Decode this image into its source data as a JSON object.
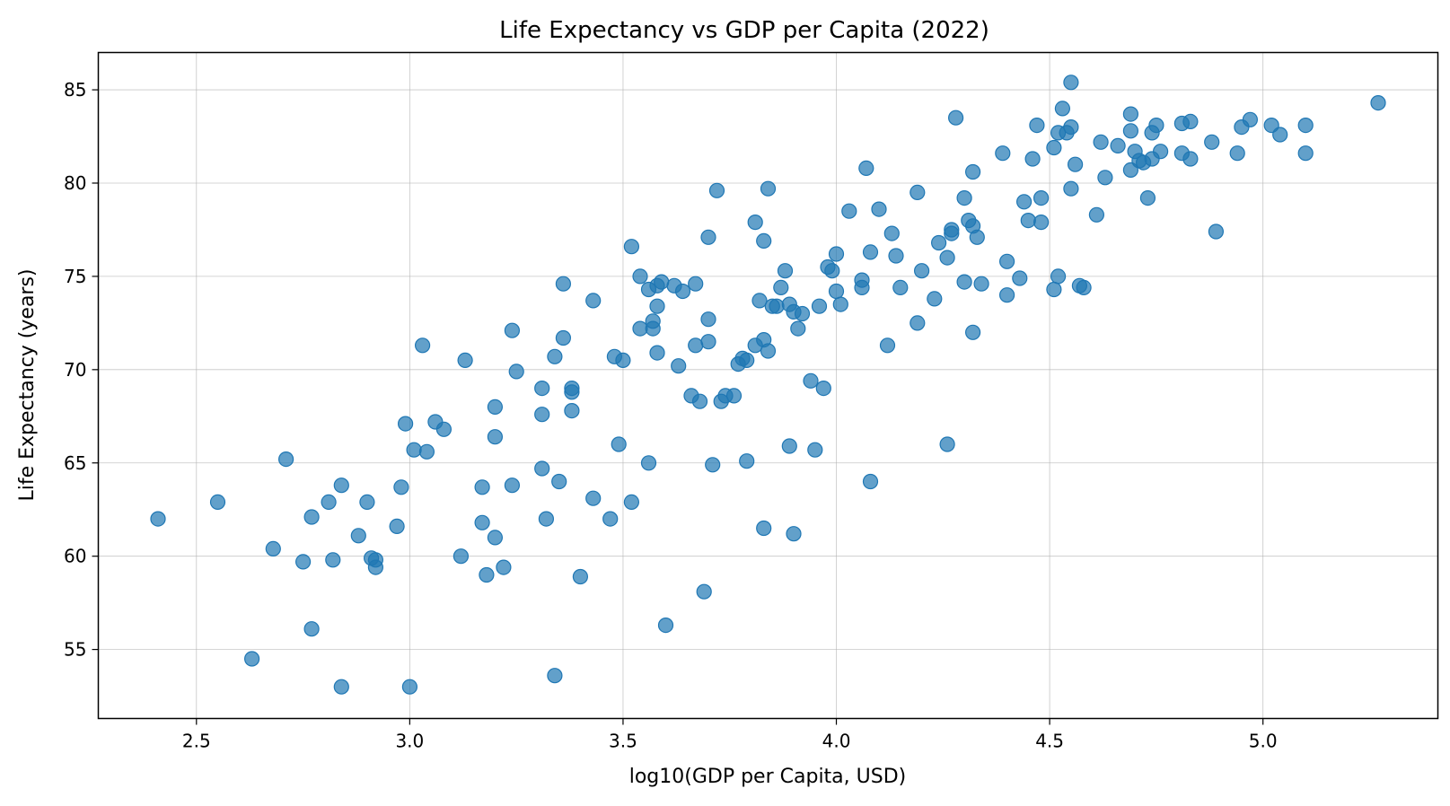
{
  "chart_data": {
    "type": "scatter",
    "title": "Life Expectancy vs GDP per Capita (2022)",
    "xlabel": "log10(GDP per Capita, USD)",
    "ylabel": "Life Expectancy (years)",
    "xlim": [
      2.27,
      5.41
    ],
    "ylim": [
      51.3,
      87.0
    ],
    "xticks": [
      2.5,
      3.0,
      3.5,
      4.0,
      4.5,
      5.0
    ],
    "yticks": [
      55,
      60,
      65,
      70,
      75,
      80,
      85
    ],
    "xtick_labels": [
      "2.5",
      "3.0",
      "3.5",
      "4.0",
      "4.5",
      "5.0"
    ],
    "ytick_labels": [
      "55",
      "60",
      "65",
      "70",
      "75",
      "80",
      "85"
    ],
    "grid": true,
    "marker_color": "#1f77b4",
    "marker_alpha": 0.7,
    "points": [
      [
        2.41,
        62.0
      ],
      [
        2.55,
        62.9
      ],
      [
        2.63,
        54.5
      ],
      [
        2.68,
        60.4
      ],
      [
        2.71,
        65.2
      ],
      [
        2.75,
        59.7
      ],
      [
        2.77,
        62.1
      ],
      [
        2.77,
        56.1
      ],
      [
        2.81,
        62.9
      ],
      [
        2.82,
        59.8
      ],
      [
        2.84,
        63.8
      ],
      [
        2.84,
        53.0
      ],
      [
        2.88,
        61.1
      ],
      [
        2.9,
        62.9
      ],
      [
        2.91,
        59.9
      ],
      [
        2.92,
        59.8
      ],
      [
        2.92,
        59.4
      ],
      [
        2.97,
        61.6
      ],
      [
        2.98,
        63.7
      ],
      [
        2.99,
        67.1
      ],
      [
        3.0,
        53.0
      ],
      [
        3.01,
        65.7
      ],
      [
        3.03,
        71.3
      ],
      [
        3.04,
        65.6
      ],
      [
        3.06,
        67.2
      ],
      [
        3.08,
        66.8
      ],
      [
        3.12,
        60.0
      ],
      [
        3.13,
        70.5
      ],
      [
        3.17,
        61.8
      ],
      [
        3.17,
        63.7
      ],
      [
        3.18,
        59.0
      ],
      [
        3.2,
        61.0
      ],
      [
        3.2,
        66.4
      ],
      [
        3.2,
        68.0
      ],
      [
        3.22,
        59.4
      ],
      [
        3.24,
        63.8
      ],
      [
        3.24,
        72.1
      ],
      [
        3.25,
        69.9
      ],
      [
        3.31,
        64.7
      ],
      [
        3.31,
        67.6
      ],
      [
        3.31,
        69.0
      ],
      [
        3.32,
        62.0
      ],
      [
        3.34,
        70.7
      ],
      [
        3.34,
        53.6
      ],
      [
        3.35,
        64.0
      ],
      [
        3.36,
        74.6
      ],
      [
        3.36,
        71.7
      ],
      [
        3.38,
        67.8
      ],
      [
        3.38,
        68.8
      ],
      [
        3.38,
        69.0
      ],
      [
        3.4,
        58.9
      ],
      [
        3.43,
        63.1
      ],
      [
        3.43,
        73.7
      ],
      [
        3.47,
        62.0
      ],
      [
        3.48,
        70.7
      ],
      [
        3.49,
        66.0
      ],
      [
        3.5,
        70.5
      ],
      [
        3.52,
        62.9
      ],
      [
        3.52,
        76.6
      ],
      [
        3.54,
        75.0
      ],
      [
        3.54,
        72.2
      ],
      [
        3.56,
        65.0
      ],
      [
        3.56,
        74.3
      ],
      [
        3.57,
        72.2
      ],
      [
        3.57,
        72.6
      ],
      [
        3.58,
        70.9
      ],
      [
        3.58,
        73.4
      ],
      [
        3.58,
        74.5
      ],
      [
        3.59,
        74.7
      ],
      [
        3.6,
        56.3
      ],
      [
        3.62,
        74.5
      ],
      [
        3.63,
        70.2
      ],
      [
        3.64,
        74.2
      ],
      [
        3.66,
        68.6
      ],
      [
        3.67,
        71.3
      ],
      [
        3.67,
        74.6
      ],
      [
        3.68,
        68.3
      ],
      [
        3.69,
        58.1
      ],
      [
        3.7,
        77.1
      ],
      [
        3.7,
        72.7
      ],
      [
        3.7,
        71.5
      ],
      [
        3.71,
        64.9
      ],
      [
        3.72,
        79.6
      ],
      [
        3.73,
        68.3
      ],
      [
        3.74,
        68.6
      ],
      [
        3.76,
        68.6
      ],
      [
        3.77,
        70.3
      ],
      [
        3.78,
        70.6
      ],
      [
        3.79,
        70.5
      ],
      [
        3.79,
        65.1
      ],
      [
        3.81,
        77.9
      ],
      [
        3.81,
        71.3
      ],
      [
        3.82,
        73.7
      ],
      [
        3.83,
        71.6
      ],
      [
        3.83,
        61.5
      ],
      [
        3.83,
        76.9
      ],
      [
        3.84,
        79.7
      ],
      [
        3.84,
        71.0
      ],
      [
        3.85,
        73.4
      ],
      [
        3.86,
        73.4
      ],
      [
        3.87,
        74.4
      ],
      [
        3.88,
        75.3
      ],
      [
        3.89,
        65.9
      ],
      [
        3.89,
        73.5
      ],
      [
        3.9,
        73.1
      ],
      [
        3.9,
        61.2
      ],
      [
        3.91,
        72.2
      ],
      [
        3.92,
        73.0
      ],
      [
        3.94,
        69.4
      ],
      [
        3.95,
        65.7
      ],
      [
        3.96,
        73.4
      ],
      [
        3.97,
        69.0
      ],
      [
        3.98,
        75.5
      ],
      [
        3.99,
        75.3
      ],
      [
        4.0,
        74.2
      ],
      [
        4.0,
        76.2
      ],
      [
        4.01,
        73.5
      ],
      [
        4.03,
        78.5
      ],
      [
        4.06,
        74.4
      ],
      [
        4.06,
        74.8
      ],
      [
        4.07,
        80.8
      ],
      [
        4.08,
        76.3
      ],
      [
        4.08,
        64.0
      ],
      [
        4.1,
        78.6
      ],
      [
        4.12,
        71.3
      ],
      [
        4.13,
        77.3
      ],
      [
        4.14,
        76.1
      ],
      [
        4.15,
        74.4
      ],
      [
        4.19,
        79.5
      ],
      [
        4.19,
        72.5
      ],
      [
        4.2,
        75.3
      ],
      [
        4.23,
        73.8
      ],
      [
        4.24,
        76.8
      ],
      [
        4.26,
        66.0
      ],
      [
        4.26,
        76.0
      ],
      [
        4.27,
        77.5
      ],
      [
        4.27,
        77.3
      ],
      [
        4.28,
        83.5
      ],
      [
        4.3,
        74.7
      ],
      [
        4.3,
        79.2
      ],
      [
        4.31,
        78.0
      ],
      [
        4.32,
        77.7
      ],
      [
        4.32,
        72.0
      ],
      [
        4.32,
        80.6
      ],
      [
        4.33,
        77.1
      ],
      [
        4.34,
        74.6
      ],
      [
        4.39,
        81.6
      ],
      [
        4.4,
        75.8
      ],
      [
        4.4,
        74.0
      ],
      [
        4.43,
        74.9
      ],
      [
        4.44,
        79.0
      ],
      [
        4.45,
        78.0
      ],
      [
        4.46,
        81.3
      ],
      [
        4.47,
        83.1
      ],
      [
        4.48,
        79.2
      ],
      [
        4.48,
        77.9
      ],
      [
        4.51,
        81.9
      ],
      [
        4.51,
        74.3
      ],
      [
        4.52,
        82.7
      ],
      [
        4.52,
        75.0
      ],
      [
        4.53,
        84.0
      ],
      [
        4.54,
        82.7
      ],
      [
        4.55,
        85.4
      ],
      [
        4.55,
        83.0
      ],
      [
        4.55,
        79.7
      ],
      [
        4.56,
        81.0
      ],
      [
        4.57,
        74.5
      ],
      [
        4.58,
        74.4
      ],
      [
        4.61,
        78.3
      ],
      [
        4.62,
        82.2
      ],
      [
        4.63,
        80.3
      ],
      [
        4.66,
        82.0
      ],
      [
        4.69,
        82.8
      ],
      [
        4.69,
        80.7
      ],
      [
        4.69,
        83.7
      ],
      [
        4.7,
        81.7
      ],
      [
        4.71,
        81.2
      ],
      [
        4.72,
        81.1
      ],
      [
        4.73,
        79.2
      ],
      [
        4.74,
        82.7
      ],
      [
        4.74,
        81.3
      ],
      [
        4.75,
        83.1
      ],
      [
        4.76,
        81.7
      ],
      [
        4.81,
        81.6
      ],
      [
        4.81,
        83.2
      ],
      [
        4.83,
        83.3
      ],
      [
        4.83,
        81.3
      ],
      [
        4.88,
        82.2
      ],
      [
        4.89,
        77.4
      ],
      [
        4.94,
        81.6
      ],
      [
        4.95,
        83.0
      ],
      [
        4.97,
        83.4
      ],
      [
        5.02,
        83.1
      ],
      [
        5.04,
        82.6
      ],
      [
        5.1,
        81.6
      ],
      [
        5.1,
        83.1
      ],
      [
        5.27,
        84.3
      ]
    ]
  }
}
